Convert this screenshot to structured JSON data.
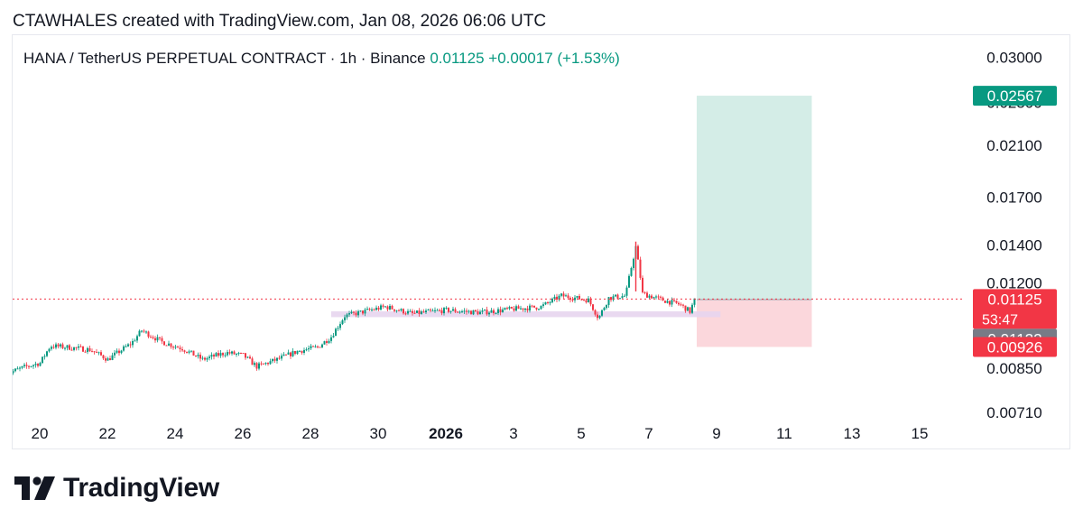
{
  "header": {
    "attribution": "CTAWHALES created with TradingView.com, Jan 08, 2026 06:06 UTC"
  },
  "brand": {
    "logo_icon": "tradingview-logo-icon",
    "name": "TradingView"
  },
  "colors": {
    "up": "#089981",
    "down": "#f23645",
    "target_zone": "#d4ede7",
    "stop_zone": "#fbd7dc",
    "support_band": "#e7d5ee",
    "price_line": "#f23645",
    "axis_text": "#131722",
    "info_green": "#089981",
    "tag_gray": "#787b86"
  },
  "chart_data": {
    "type": "candlestick",
    "symbol_info": {
      "name": "HANA / TetherUS PERPETUAL CONTRACT · 1h · Binance",
      "price": "0.01125",
      "change": "+0.00017 (+1.53%)"
    },
    "x_axis": {
      "start_day": "Dec 19",
      "end_day": "Jan 16",
      "tick_labels": [
        "20",
        "22",
        "24",
        "26",
        "28",
        "30",
        "2026",
        "3",
        "5",
        "7",
        "9",
        "11",
        "13",
        "15"
      ],
      "bold_labels": [
        "2026"
      ]
    },
    "y_axis": {
      "scale": "log",
      "ylim": [
        0.0071,
        0.0305
      ],
      "tick_labels": [
        "0.03000",
        "0.02100",
        "0.01700",
        "0.01400",
        "0.01200",
        "0.00710"
      ],
      "partially_hidden_labels": [
        "0.02500",
        "0.00850"
      ]
    },
    "price_path": [
      [
        "Dec 19",
        0.0083
      ],
      [
        "Dec 19.5",
        0.00852
      ],
      [
        "Dec 20",
        0.00868
      ],
      [
        "Dec 20.3",
        0.0093
      ],
      [
        "Dec 20.8",
        0.00925
      ],
      [
        "Dec 21.5",
        0.00915
      ],
      [
        "Dec 22",
        0.0088
      ],
      [
        "Dec 22.7",
        0.0094
      ],
      [
        "Dec 23",
        0.0099
      ],
      [
        "Dec 23.6",
        0.00945
      ],
      [
        "Dec 24.2",
        0.0092
      ],
      [
        "Dec 24.8",
        0.0088
      ],
      [
        "Dec 25.5",
        0.00905
      ],
      [
        "Dec 26",
        0.00895
      ],
      [
        "Dec 26.4",
        0.00855
      ],
      [
        "Dec 27",
        0.0088
      ],
      [
        "Dec 27.6",
        0.0091
      ],
      [
        "Dec 28.2",
        0.00925
      ],
      [
        "Dec 28.6",
        0.00965
      ],
      [
        "Dec 29",
        0.0105
      ],
      [
        "Dec 29.6",
        0.0107
      ],
      [
        "Dec 30.2",
        0.0109
      ],
      [
        "Dec 31",
        0.0106
      ],
      [
        "Jan 1",
        0.01075
      ],
      [
        "Jan 2",
        0.01065
      ],
      [
        "Jan 3",
        0.0108
      ],
      [
        "Jan 3.8",
        0.0109
      ],
      [
        "Jan 4.4",
        0.0114
      ],
      [
        "Jan 5.2",
        0.0112
      ],
      [
        "Jan 5.5",
        0.0104
      ],
      [
        "Jan 5.8",
        0.0113
      ],
      [
        "Jan 6.3",
        0.0114
      ],
      [
        "Jan 6.6",
        0.0139
      ],
      [
        "Jan 6.8",
        0.0115
      ],
      [
        "Jan 7.4",
        0.0112
      ],
      [
        "Jan 7.9",
        0.011
      ],
      [
        "Jan 8.2",
        0.0107
      ],
      [
        "Jan 8.35",
        0.01125
      ]
    ],
    "support_band": {
      "from": "Dec 28.6",
      "to": "Jan 9.1",
      "low": 0.01045,
      "high": 0.0107
    },
    "position_tool": {
      "from": "Jan 8.4",
      "to": "Jan 11.8",
      "entry": 0.01122,
      "target": 0.02567,
      "stop": 0.00926
    },
    "price_tags": [
      {
        "label": "0.02567",
        "value": 0.02567,
        "kind": "target"
      },
      {
        "label": "0.01125",
        "sublabel": "53:47",
        "value": 0.01125,
        "kind": "last-price"
      },
      {
        "label": "0.01122",
        "value": 0.01122,
        "kind": "entry"
      },
      {
        "label": "0.00926",
        "value": 0.00926,
        "kind": "stop"
      }
    ]
  }
}
